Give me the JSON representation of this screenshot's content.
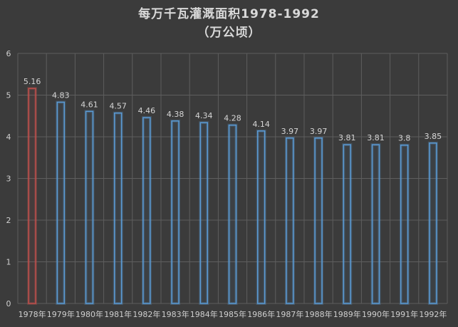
{
  "chart_data": {
    "type": "bar",
    "title": "每万千瓦灌溉面积1978-1992",
    "subtitle": "（万公顷）",
    "categories": [
      "1978年",
      "1979年",
      "1980年",
      "1981年",
      "1982年",
      "1983年",
      "1984年",
      "1985年",
      "1986年",
      "1987年",
      "1988年",
      "1989年",
      "1990年",
      "1991年",
      "1992年"
    ],
    "values": [
      5.16,
      4.83,
      4.61,
      4.57,
      4.46,
      4.38,
      4.34,
      4.28,
      4.14,
      3.97,
      3.97,
      3.81,
      3.81,
      3.8,
      3.85
    ],
    "value_labels": [
      "5.16",
      "4.83",
      "4.61",
      "4.57",
      "4.46",
      "4.38",
      "4.34",
      "4.28",
      "4.14",
      "3.97",
      "3.97",
      "3.81",
      "3.81",
      "3.8",
      "3.85"
    ],
    "ylim": [
      0,
      6
    ],
    "yticks": [
      0,
      1,
      2,
      3,
      4,
      5,
      6
    ],
    "ytick_labels": [
      "0",
      "1",
      "2",
      "3",
      "4",
      "5",
      "6"
    ],
    "xlabel": "",
    "ylabel": "",
    "grid": true,
    "legend": "none",
    "colors": {
      "background": "#3b3b3b",
      "grid": "#5e5e5e",
      "bar_outline": "#5b9bd5",
      "highlight_bar_outline": "#c0504d",
      "text": "#d9d9d9"
    },
    "highlighted_category": "1978年"
  }
}
